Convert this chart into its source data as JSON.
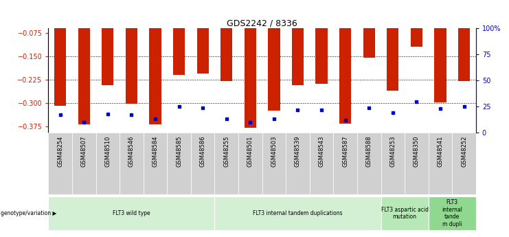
{
  "title": "GDS2242 / 8336",
  "samples": [
    "GSM48254",
    "GSM48507",
    "GSM48510",
    "GSM48546",
    "GSM48584",
    "GSM48585",
    "GSM48586",
    "GSM48255",
    "GSM48501",
    "GSM48503",
    "GSM48539",
    "GSM48543",
    "GSM48587",
    "GSM48588",
    "GSM48253",
    "GSM48350",
    "GSM48541",
    "GSM48252"
  ],
  "log10_ratio": [
    -0.308,
    -0.368,
    -0.243,
    -0.302,
    -0.368,
    -0.21,
    -0.205,
    -0.23,
    -0.38,
    -0.325,
    -0.243,
    -0.237,
    -0.365,
    -0.155,
    -0.26,
    -0.118,
    -0.298,
    -0.228
  ],
  "percentile_rank": [
    17,
    10,
    18,
    17,
    13,
    25,
    24,
    13,
    10,
    13,
    22,
    22,
    12,
    24,
    19,
    30,
    23,
    25
  ],
  "ylim_left": [
    -0.395,
    -0.06
  ],
  "ylim_right": [
    0,
    100
  ],
  "yticks_left": [
    -0.375,
    -0.3,
    -0.225,
    -0.15,
    -0.075
  ],
  "yticks_right": [
    0,
    25,
    50,
    75,
    100
  ],
  "groups": [
    {
      "label": "FLT3 wild type",
      "start": 0,
      "end": 7,
      "color": "#d4f0d4"
    },
    {
      "label": "FLT3 internal tandem duplications",
      "start": 7,
      "end": 14,
      "color": "#d4f0d4"
    },
    {
      "label": "FLT3 aspartic acid\nmutation",
      "start": 14,
      "end": 16,
      "color": "#b8e8b8"
    },
    {
      "label": "FLT3\ninternal\ntande\nm dupli",
      "start": 16,
      "end": 18,
      "color": "#90d890"
    }
  ],
  "bar_color": "#cc2200",
  "dot_color": "#0000cc",
  "bg_color": "#d0d0d0",
  "left_tick_color": "#cc2200",
  "right_tick_color": "#0000cc",
  "dotted_lines": [
    -0.15,
    -0.225,
    -0.3
  ],
  "bar_width": 0.5
}
